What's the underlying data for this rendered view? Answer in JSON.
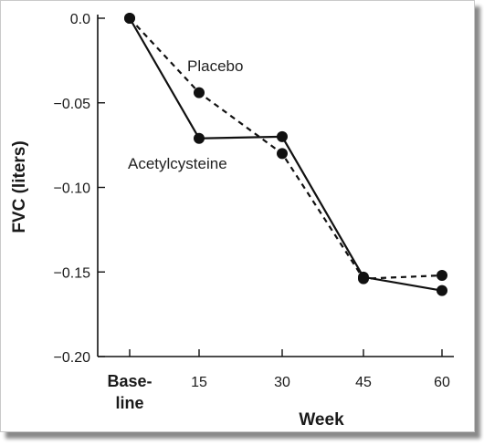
{
  "chart_data": {
    "type": "line",
    "xlabel": "Week",
    "ylabel": "FVC (liters)",
    "x": [
      "Base-line",
      "15",
      "30",
      "45",
      "60"
    ],
    "x_tick_lines": [
      [
        "Base-",
        "line"
      ],
      [
        "15"
      ],
      [
        "30"
      ],
      [
        "45"
      ],
      [
        "60"
      ]
    ],
    "ylim": [
      -0.2,
      0.0
    ],
    "yticks": [
      0.0,
      -0.05,
      -0.1,
      -0.15,
      -0.2
    ],
    "ytick_labels": [
      "0.0",
      "−0.05",
      "−0.10",
      "−0.15",
      "−0.20"
    ],
    "grid": false,
    "series": [
      {
        "name": "Placebo",
        "style": "dashed",
        "color": "#111111",
        "values": [
          0.0,
          -0.044,
          -0.08,
          -0.154,
          -0.152
        ]
      },
      {
        "name": "Acetylcysteine",
        "style": "solid",
        "color": "#111111",
        "values": [
          0.0,
          -0.071,
          -0.07,
          -0.153,
          -0.161
        ]
      }
    ]
  }
}
